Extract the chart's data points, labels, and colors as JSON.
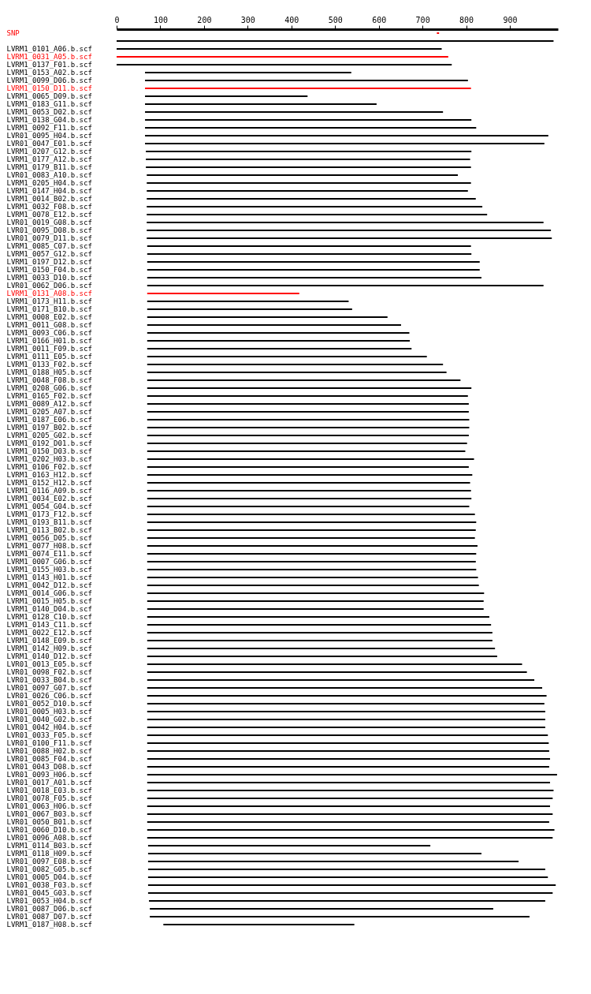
{
  "chart_data": {
    "type": "bar",
    "orientation": "horizontal",
    "categories": [
      "SNP",
      null,
      "LVRM1_0101_A06.b.scf",
      "LVRM1_0031_A05.b.scf",
      "LVRM1_0137_F01.b.scf",
      "LVRM1_0153_A02.b.scf",
      "LVRM1_0099_D06.b.scf",
      "LVRM1_0150_D11.b.scf",
      "LVRM1_0065_D09.b.scf",
      "LVRM1_0183_G11.b.scf",
      "LVRM1_0053_D02.b.scf",
      "LVRM1_0138_G04.b.scf",
      "LVRM1_0092_F11.b.scf",
      "LVR01_0095_H04.b.scf",
      "LVR01_0047_E01.b.scf",
      "LVRM1_0207_G12.b.scf",
      "LVRM1_0177_A12.b.scf",
      "LVRM1_0179_B11.b.scf",
      "LVR01_0083_A10.b.scf",
      "LVRM1_0205_H04.b.scf",
      "LVRM1_0147_H04.b.scf",
      "LVRM1_0014_B02.b.scf",
      "LVRM1_0032_F08.b.scf",
      "LVRM1_0078_E12.b.scf",
      "LVR01_0019_G08.b.scf",
      "LVR01_0095_D08.b.scf",
      "LVR01_0079_D11.b.scf",
      "LVRM1_0085_C07.b.scf",
      "LVRM1_0057_G12.b.scf",
      "LVRM1_0197_D12.b.scf",
      "LVRM1_0150_F04.b.scf",
      "LVRM1_0033_D10.b.scf",
      "LVR01_0062_D06.b.scf",
      "LVRM1_0131_A08.b.scf",
      "LVRM1_0173_H11.b.scf",
      "LVRM1_0171_B10.b.scf",
      "LVRM1_0008_E02.b.scf",
      "LVRM1_0011_G08.b.scf",
      "LVRM1_0093_C06.b.scf",
      "LVRM1_0166_H01.b.scf",
      "LVRM1_0011_F09.b.scf",
      "LVRM1_0111_E05.b.scf",
      "LVRM1_0133_F02.b.scf",
      "LVRM1_0188_H05.b.scf",
      "LVRM1_0048_F08.b.scf",
      "LVRM1_0208_G06.b.scf",
      "LVRM1_0165_F02.b.scf",
      "LVRM1_0089_A12.b.scf",
      "LVRM1_0205_A07.b.scf",
      "LVRM1_0187_E06.b.scf",
      "LVRM1_0197_B02.b.scf",
      "LVRM1_0205_G02.b.scf",
      "LVRM1_0192_D01.b.scf",
      "LVRM1_0150_D03.b.scf",
      "LVRM1_0202_H03.b.scf",
      "LVRM1_0106_F02.b.scf",
      "LVRM1_0163_H12.b.scf",
      "LVRM1_0152_H12.b.scf",
      "LVRM1_0116_A09.b.scf",
      "LVRM1_0034_E02.b.scf",
      "LVRM1_0054_G04.b.scf",
      "LVRM1_0173_F12.b.scf",
      "LVRM1_0193_B11.b.scf",
      "LVRM1_0113_B02.b.scf",
      "LVRM1_0056_D05.b.scf",
      "LVRM1_0077_H08.b.scf",
      "LVRM1_0074_E11.b.scf",
      "LVRM1_0007_G06.b.scf",
      "LVRM1_0155_H03.b.scf",
      "LVRM1_0143_H01.b.scf",
      "LVRM1_0042_D12.b.scf",
      "LVRM1_0014_G06.b.scf",
      "LVRM1_0015_H05.b.scf",
      "LVRM1_0140_D04.b.scf",
      "LVRM1_0128_C10.b.scf",
      "LVRM1_0143_C11.b.scf",
      "LVRM1_0022_E12.b.scf",
      "LVRM1_0148_E09.b.scf",
      "LVRM1_0142_H09.b.scf",
      "LVRM1_0140_D12.b.scf",
      "LVR01_0013_E05.b.scf",
      "LVR01_0098_F02.b.scf",
      "LVR01_0033_B04.b.scf",
      "LVR01_0097_G07.b.scf",
      "LVR01_0026_C06.b.scf",
      "LVR01_0052_D10.b.scf",
      "LVR01_0005_H03.b.scf",
      "LVR01_0040_G02.b.scf",
      "LVR01_0042_H04.b.scf",
      "LVR01_0033_F05.b.scf",
      "LVR01_0100_F11.b.scf",
      "LVR01_0088_H02.b.scf",
      "LVR01_0085_F04.b.scf",
      "LVR01_0043_D08.b.scf",
      "LVR01_0093_H06.b.scf",
      "LVR01_0017_A01.b.scf",
      "LVR01_0018_E03.b.scf",
      "LVR01_0078_F05.b.scf",
      "LVR01_0063_H06.b.scf",
      "LVR01_0067_B03.b.scf",
      "LVR01_0050_B01.b.scf",
      "LVR01_0060_D10.b.scf",
      "LVR01_0096_A08.b.scf",
      "LVRM1_0114_B03.b.scf",
      "LVRM1_0118_H09.b.scf",
      "LVR01_0097_E08.b.scf",
      "LVR01_0082_G05.b.scf",
      "LVR01_0005_D04.b.scf",
      "LVR01_0038_F03.b.scf",
      "LVR01_0045_G03.b.scf",
      "LVR01_0053_H04.b.scf",
      "LVR01_0087_D06.b.scf",
      "LVR01_0087_D07.b.scf",
      "LVRM1_0187_H08.b.scf"
    ],
    "base": [
      733,
      0,
      0,
      0,
      0,
      65,
      65,
      65,
      65,
      65,
      65,
      65,
      65,
      65,
      65,
      67,
      67,
      67,
      69,
      69,
      69,
      69,
      69,
      69,
      69,
      69,
      69,
      70,
      70,
      70,
      70,
      70,
      70,
      70,
      70,
      70,
      70,
      70,
      70,
      70,
      70,
      70,
      70,
      70,
      70,
      70,
      70,
      70,
      70,
      70,
      70,
      70,
      70,
      70,
      70,
      70,
      70,
      70,
      70,
      70,
      70,
      70,
      70,
      70,
      70,
      70,
      70,
      70,
      70,
      70,
      70,
      70,
      70,
      70,
      70,
      70,
      70,
      70,
      70,
      70,
      70,
      70,
      70,
      70,
      70,
      70,
      70,
      70,
      70,
      70,
      70,
      70,
      70,
      70,
      70,
      70,
      70,
      70,
      70,
      70,
      70,
      70,
      70,
      72,
      72,
      72,
      72,
      72,
      72,
      72,
      74,
      76,
      76,
      107
    ],
    "values": [
      5,
      1000,
      744,
      759,
      767,
      472,
      739,
      746,
      372,
      530,
      682,
      747,
      758,
      923,
      914,
      745,
      742,
      744,
      712,
      742,
      735,
      753,
      768,
      779,
      908,
      925,
      927,
      741,
      742,
      761,
      761,
      765,
      907,
      348,
      461,
      469,
      550,
      581,
      600,
      601,
      605,
      640,
      677,
      685,
      717,
      742,
      734,
      736,
      736,
      737,
      737,
      736,
      732,
      728,
      748,
      736,
      744,
      739,
      741,
      742,
      737,
      750,
      753,
      752,
      750,
      756,
      753,
      752,
      753,
      757,
      759,
      771,
      770,
      770,
      783,
      787,
      790,
      790,
      796,
      801,
      858,
      869,
      886,
      904,
      914,
      909,
      911,
      911,
      911,
      917,
      919,
      920,
      922,
      920,
      938,
      922,
      930,
      928,
      922,
      928,
      920,
      932,
      928,
      646,
      763,
      848,
      909,
      915,
      933,
      926,
      907,
      786,
      869,
      437
    ],
    "colors": [
      "#ff0000",
      "#000000",
      "#000000",
      "#ff0000",
      "#000000",
      "#000000",
      "#000000",
      "#ff0000",
      "#000000",
      "#000000",
      "#000000",
      "#000000",
      "#000000",
      "#000000",
      "#000000",
      "#000000",
      "#000000",
      "#000000",
      "#000000",
      "#000000",
      "#000000",
      "#000000",
      "#000000",
      "#000000",
      "#000000",
      "#000000",
      "#000000",
      "#000000",
      "#000000",
      "#000000",
      "#000000",
      "#000000",
      "#000000",
      "#ff0000",
      "#000000",
      "#000000",
      "#000000",
      "#000000",
      "#000000",
      "#000000",
      "#000000",
      "#000000",
      "#000000",
      "#000000",
      "#000000",
      "#000000",
      "#000000",
      "#000000",
      "#000000",
      "#000000",
      "#000000",
      "#000000",
      "#000000",
      "#000000",
      "#000000",
      "#000000",
      "#000000",
      "#000000",
      "#000000",
      "#000000",
      "#000000",
      "#000000",
      "#000000",
      "#000000",
      "#000000",
      "#000000",
      "#000000",
      "#000000",
      "#000000",
      "#000000",
      "#000000",
      "#000000",
      "#000000",
      "#000000",
      "#000000",
      "#000000",
      "#000000",
      "#000000",
      "#000000",
      "#000000",
      "#000000",
      "#000000",
      "#000000",
      "#000000",
      "#000000",
      "#000000",
      "#000000",
      "#000000",
      "#000000",
      "#000000",
      "#000000",
      "#000000",
      "#000000",
      "#000000",
      "#000000",
      "#000000",
      "#000000",
      "#000000",
      "#000000",
      "#000000",
      "#000000",
      "#000000",
      "#000000",
      "#000000",
      "#000000",
      "#000000",
      "#000000",
      "#000000",
      "#000000",
      "#000000",
      "#000000",
      "#000000",
      "#000000",
      "#000000"
    ],
    "xlim": [
      0,
      1010
    ],
    "xticks": [
      0,
      100,
      200,
      300,
      400,
      500,
      600,
      700,
      800,
      900
    ],
    "grid": false
  }
}
